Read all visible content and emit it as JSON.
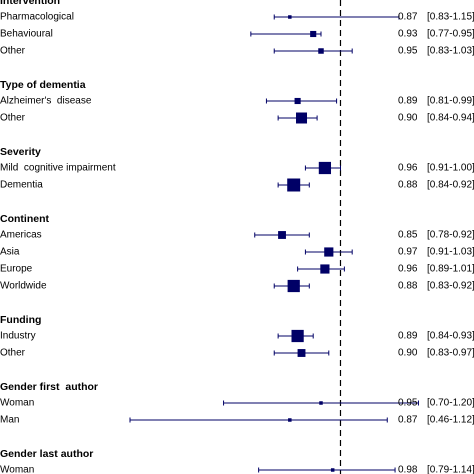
{
  "chart_data": {
    "type": "forest",
    "reference_line": 1.0,
    "x_range": [
      0.4,
      1.2
    ],
    "groups": [
      {
        "heading": "Intervention",
        "rows": [
          {
            "label": "Pharmacological",
            "estimate": 0.87,
            "ci": [
              0.83,
              1.15
            ],
            "ci_text": "[0.83-1.15]"
          },
          {
            "label": "Behavioural",
            "estimate": 0.93,
            "ci": [
              0.77,
              0.95
            ],
            "ci_text": "[0.77-0.95]"
          },
          {
            "label": "Other",
            "estimate": 0.95,
            "ci": [
              0.83,
              1.03
            ],
            "ci_text": "[0.83-1.03]"
          }
        ]
      },
      {
        "heading": "Type of dementia",
        "rows": [
          {
            "label": "Alzheimer's  disease",
            "estimate": 0.89,
            "ci": [
              0.81,
              0.99
            ],
            "ci_text": "[0.81-0.99]"
          },
          {
            "label": "Other",
            "estimate": 0.9,
            "ci": [
              0.84,
              0.94
            ],
            "ci_text": "[0.84-0.94]"
          }
        ]
      },
      {
        "heading": "Severity",
        "rows": [
          {
            "label": "Mild  cognitive impairment",
            "estimate": 0.96,
            "ci": [
              0.91,
              1.0
            ],
            "ci_text": "[0.91-1.00]"
          },
          {
            "label": "Dementia",
            "estimate": 0.88,
            "ci": [
              0.84,
              0.92
            ],
            "ci_text": "[0.84-0.92]"
          }
        ]
      },
      {
        "heading": "Continent",
        "rows": [
          {
            "label": "Americas",
            "estimate": 0.85,
            "ci": [
              0.78,
              0.92
            ],
            "ci_text": "[0.78-0.92]"
          },
          {
            "label": "Asia",
            "estimate": 0.97,
            "ci": [
              0.91,
              1.03
            ],
            "ci_text": "[0.91-1.03]"
          },
          {
            "label": "Europe",
            "estimate": 0.96,
            "ci": [
              0.89,
              1.01
            ],
            "ci_text": "[0.89-1.01]"
          },
          {
            "label": "Worldwide",
            "estimate": 0.88,
            "ci": [
              0.83,
              0.92
            ],
            "ci_text": "[0.83-0.92]"
          }
        ]
      },
      {
        "heading": "Funding",
        "rows": [
          {
            "label": "Industry",
            "estimate": 0.89,
            "ci": [
              0.84,
              0.93
            ],
            "ci_text": "[0.84-0.93]"
          },
          {
            "label": "Other",
            "estimate": 0.9,
            "ci": [
              0.83,
              0.97
            ],
            "ci_text": "[0.83-0.97]"
          }
        ]
      },
      {
        "heading": "Gender first  author",
        "rows": [
          {
            "label": "Woman",
            "estimate": 0.95,
            "ci": [
              0.7,
              1.2
            ],
            "ci_text": "[0.70-1.20]"
          },
          {
            "label": "Man",
            "estimate": 0.87,
            "ci": [
              0.46,
              1.12
            ],
            "ci_text": "[0.46-1.12]"
          }
        ]
      },
      {
        "heading": "Gender last author",
        "rows": [
          {
            "label": "Woman",
            "estimate": 0.98,
            "ci": [
              0.79,
              1.14
            ],
            "ci_text": "[0.79-1.14]"
          }
        ]
      }
    ]
  },
  "colors": {
    "marker": "#000066",
    "ci_line": "#000066",
    "reference_line": "#000000",
    "text": "#000000"
  }
}
